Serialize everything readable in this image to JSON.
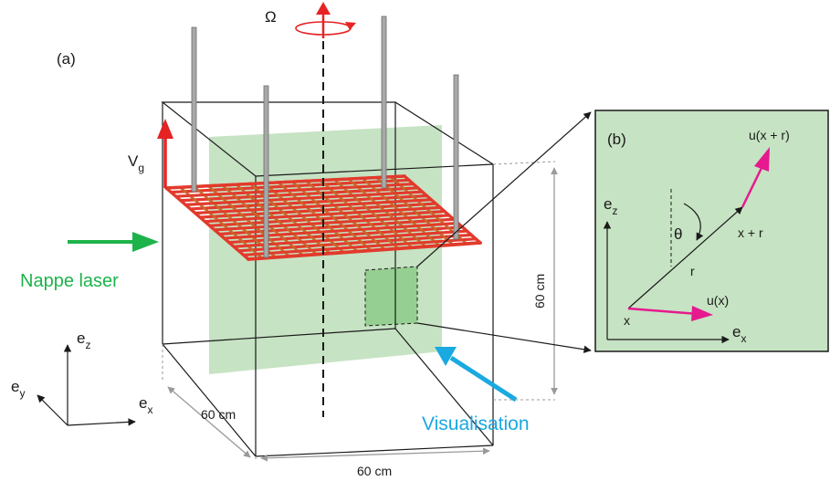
{
  "panel_a": {
    "label": "(a)",
    "omega": "Ω",
    "vg_main": "V",
    "vg_sub": "g",
    "laser_label": "Nappe laser",
    "visualisation_label": "Visualisation",
    "dim_height": "60 cm",
    "dim_depth": "60 cm",
    "dim_width": "60 cm",
    "axis_ez_main": "e",
    "axis_ez_sub": "z",
    "axis_ey_main": "e",
    "axis_ey_sub": "y",
    "axis_ex_main": "e",
    "axis_ex_sub": "x"
  },
  "panel_b": {
    "label": "(b)",
    "ez_main": "e",
    "ez_sub": "z",
    "ex_main": "e",
    "ex_sub": "x",
    "theta": "θ",
    "r": "r",
    "x": "x",
    "x_plus_r": "x + r",
    "u_x": "u(x)",
    "u_x_plus_r": "u(x + r)"
  },
  "colors": {
    "laser_green": "#c6e3c3",
    "green_arrow": "#1db34b",
    "blue_arrow": "#1aa9e0",
    "red": "#e62324",
    "magenta": "#e6198f",
    "rod_gray": "#9a9a9a",
    "grid_red": "#e23a2c",
    "grid_orange": "#c8662a"
  }
}
